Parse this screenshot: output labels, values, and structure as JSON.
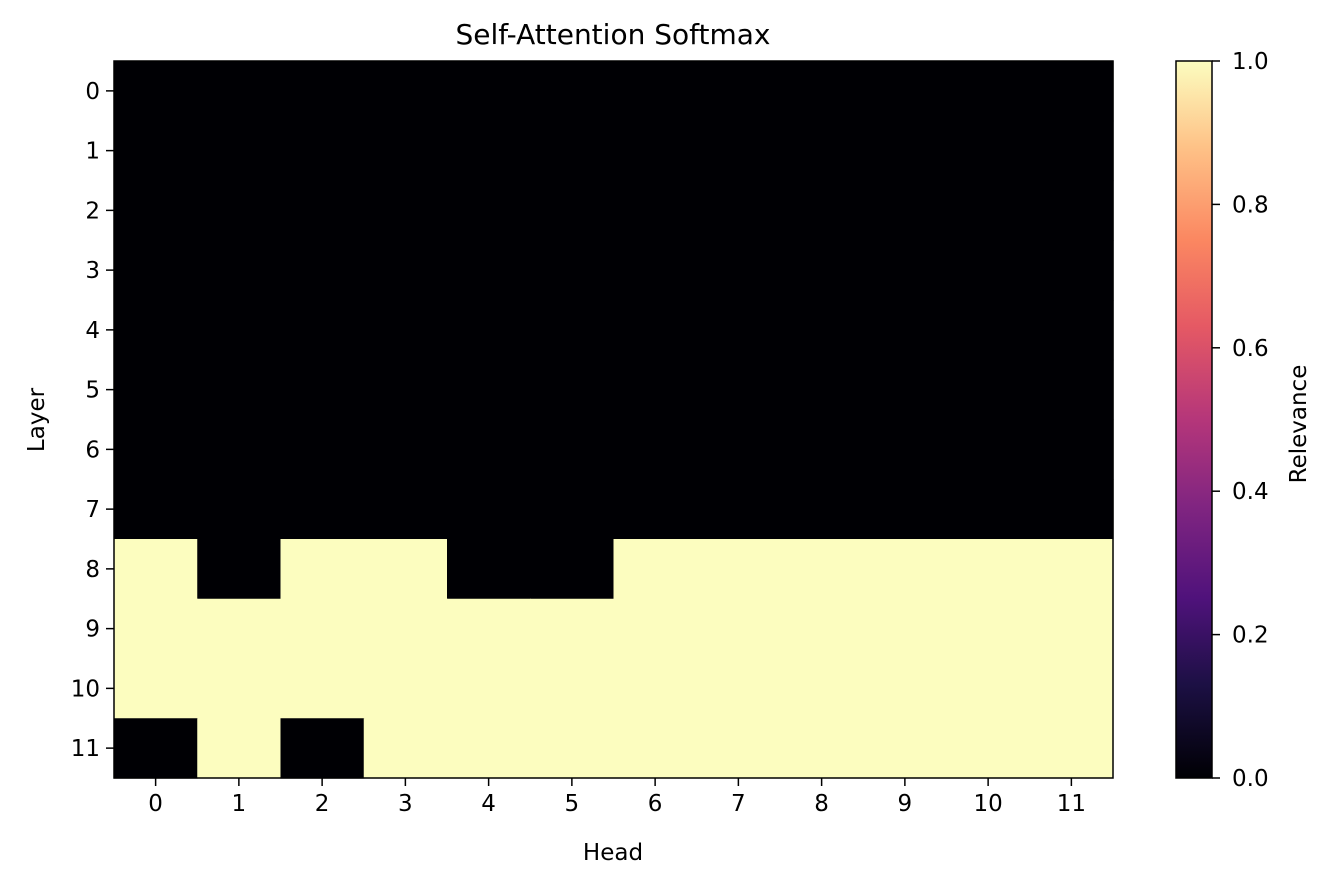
{
  "chart_data": {
    "type": "heatmap",
    "title": "Self-Attention Softmax",
    "xlabel": "Head",
    "ylabel": "Layer",
    "x_categories": [
      "0",
      "1",
      "2",
      "3",
      "4",
      "5",
      "6",
      "7",
      "8",
      "9",
      "10",
      "11"
    ],
    "y_categories": [
      "0",
      "1",
      "2",
      "3",
      "4",
      "5",
      "6",
      "7",
      "8",
      "9",
      "10",
      "11"
    ],
    "values": [
      [
        0,
        0,
        0,
        0,
        0,
        0,
        0,
        0,
        0,
        0,
        0,
        0
      ],
      [
        0,
        0,
        0,
        0,
        0,
        0,
        0,
        0,
        0,
        0,
        0,
        0
      ],
      [
        0,
        0,
        0,
        0,
        0,
        0,
        0,
        0,
        0,
        0,
        0,
        0
      ],
      [
        0,
        0,
        0,
        0,
        0,
        0,
        0,
        0,
        0,
        0,
        0,
        0
      ],
      [
        0,
        0,
        0,
        0,
        0,
        0,
        0,
        0,
        0,
        0,
        0,
        0
      ],
      [
        0,
        0,
        0,
        0,
        0,
        0,
        0,
        0,
        0,
        0,
        0,
        0
      ],
      [
        0,
        0,
        0,
        0,
        0,
        0,
        0,
        0,
        0,
        0,
        0,
        0
      ],
      [
        0,
        0,
        0,
        0,
        0,
        0,
        0,
        0,
        0,
        0,
        0,
        0
      ],
      [
        1,
        0,
        1,
        1,
        0,
        0,
        1,
        1,
        1,
        1,
        1,
        1
      ],
      [
        1,
        1,
        1,
        1,
        1,
        1,
        1,
        1,
        1,
        1,
        1,
        1
      ],
      [
        1,
        1,
        1,
        1,
        1,
        1,
        1,
        1,
        1,
        1,
        1,
        1
      ],
      [
        0,
        1,
        0,
        1,
        1,
        1,
        1,
        1,
        1,
        1,
        1,
        1
      ]
    ],
    "colormap": "magma",
    "vmin": 0,
    "vmax": 1,
    "colorbar": {
      "label": "Relevance",
      "ticks": [
        "0.0",
        "0.2",
        "0.4",
        "0.6",
        "0.8",
        "1.0"
      ]
    },
    "grid": false
  }
}
